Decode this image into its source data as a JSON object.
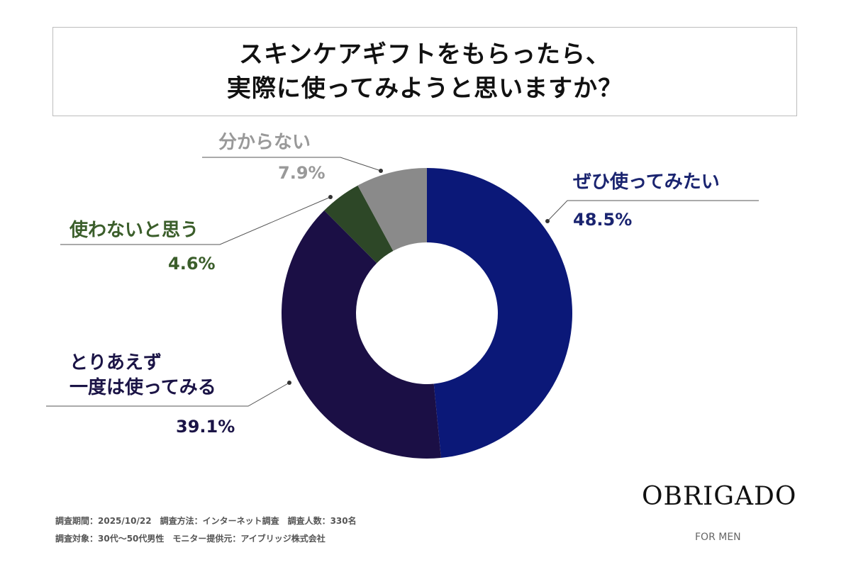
{
  "chart_data": {
    "type": "pie",
    "variant": "donut",
    "title": [
      "スキンケアギフトをもらったら、",
      "実際に使ってみようと思いますか？"
    ],
    "slices": [
      {
        "label": "ぜひ使ってみたい",
        "label_lines": [
          "ぜひ使ってみたい"
        ],
        "value": 48.5,
        "pct_text": "48.5%",
        "color": "#0b1878",
        "text_color": "#1a2470"
      },
      {
        "label": "とりあえず一度は使ってみる",
        "label_lines": [
          "とりあえず",
          "一度は使ってみる"
        ],
        "value": 39.1,
        "pct_text": "39.1%",
        "color": "#1b0f45",
        "text_color": "#1b1446"
      },
      {
        "label": "使わないと思う",
        "label_lines": [
          "使わないと思う"
        ],
        "value": 4.6,
        "pct_text": "4.6%",
        "color": "#2d4727",
        "text_color": "#3b5e2b"
      },
      {
        "label": "分からない",
        "label_lines": [
          "分からない"
        ],
        "value": 7.9,
        "pct_text": "7.9%",
        "color": "#8a8a8a",
        "text_color": "#999999"
      }
    ]
  },
  "footer": {
    "line1": "調査期間：2025/10/22　調査方法：インターネット調査　調査人数：330名",
    "line2": "調査対象：30代〜50代男性　モニター提供元：アイブリッジ株式会社"
  },
  "brand": {
    "logo": "OBRIGADO",
    "sub": "FOR MEN"
  }
}
